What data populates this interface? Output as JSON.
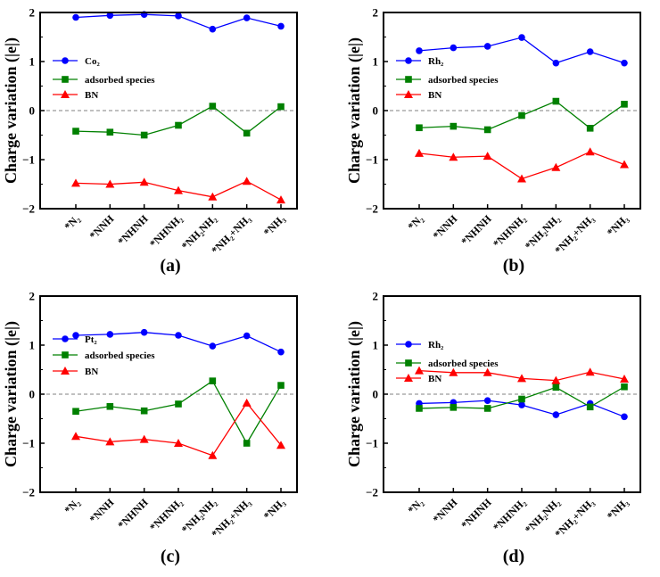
{
  "figure": {
    "colors": {
      "blue": "#0000ff",
      "green": "#008000",
      "red": "#ff0000",
      "axis": "#000000",
      "zero_line": "#808080"
    }
  },
  "chart_data": [
    {
      "type": "line",
      "panel_label": "(a)",
      "ylabel": "Charge variation (|e|)",
      "ylim": [
        -2,
        2
      ],
      "yticks": [
        "2",
        "1",
        "0",
        "−1",
        "−2"
      ],
      "categories": [
        "*N₂",
        "*NNH",
        "*NHNH",
        "*NHNH₂",
        "*NH₂NH₂",
        "*NH₂+NH₃",
        "*NH₃"
      ],
      "zero_line": true,
      "legend_position": "upper-left",
      "series": [
        {
          "name": "Co₂",
          "color": "#0000ff",
          "marker": "circle",
          "values": [
            1.9,
            1.94,
            1.96,
            1.93,
            1.66,
            1.89,
            1.72
          ]
        },
        {
          "name": "adsorbed species",
          "color": "#008000",
          "marker": "square",
          "values": [
            -0.42,
            -0.44,
            -0.5,
            -0.3,
            0.09,
            -0.46,
            0.08
          ]
        },
        {
          "name": "BN",
          "color": "#ff0000",
          "marker": "triangle",
          "values": [
            -1.48,
            -1.5,
            -1.46,
            -1.63,
            -1.76,
            -1.44,
            -1.82
          ]
        }
      ]
    },
    {
      "type": "line",
      "panel_label": "(b)",
      "ylabel": "Charge variation (|e|)",
      "ylim": [
        -2,
        2
      ],
      "yticks": [
        "2",
        "1",
        "0",
        "−1",
        "−2"
      ],
      "categories": [
        "*N₂",
        "*NNH",
        "*NHNH",
        "*NHNH₂",
        "*NH₂NH₂",
        "*NH₂+NH₃",
        "*NH₃"
      ],
      "zero_line": true,
      "legend_position": "upper-left",
      "series": [
        {
          "name": "Rh₂",
          "color": "#0000ff",
          "marker": "circle",
          "values": [
            1.22,
            1.28,
            1.31,
            1.49,
            0.97,
            1.2,
            0.97
          ]
        },
        {
          "name": "adsorbed species",
          "color": "#008000",
          "marker": "square",
          "values": [
            -0.35,
            -0.32,
            -0.39,
            -0.1,
            0.19,
            -0.36,
            0.13
          ]
        },
        {
          "name": "BN",
          "color": "#ff0000",
          "marker": "triangle",
          "values": [
            -0.87,
            -0.95,
            -0.93,
            -1.39,
            -1.16,
            -0.84,
            -1.1
          ]
        }
      ]
    },
    {
      "type": "line",
      "panel_label": "(c)",
      "ylabel": "Charge variation (|e|)",
      "ylim": [
        -2,
        2
      ],
      "yticks": [
        "2",
        "1",
        "0",
        "−1",
        "−2"
      ],
      "categories": [
        "*N₂",
        "*NNH",
        "*NHNH",
        "*NHNH₂",
        "*NH₂NH₂",
        "*NH₂+NH₃",
        "*NH₃"
      ],
      "zero_line": true,
      "legend_position": "middle-left",
      "series": [
        {
          "name": "Pt₂",
          "color": "#0000ff",
          "marker": "circle",
          "values": [
            1.2,
            1.22,
            1.26,
            1.2,
            0.98,
            1.19,
            0.86
          ]
        },
        {
          "name": "adsorbed species",
          "color": "#008000",
          "marker": "square",
          "values": [
            -0.35,
            -0.25,
            -0.34,
            -0.2,
            0.27,
            -1.0,
            0.18
          ]
        },
        {
          "name": "BN",
          "color": "#ff0000",
          "marker": "triangle",
          "values": [
            -0.86,
            -0.97,
            -0.92,
            -1.0,
            -1.25,
            -0.18,
            -1.04
          ]
        }
      ]
    },
    {
      "type": "line",
      "panel_label": "(d)",
      "ylabel": "Charge variation (|e|)",
      "ylim": [
        -2,
        2
      ],
      "yticks": [
        "2",
        "1",
        "0",
        "−1",
        "−2"
      ],
      "categories": [
        "*N₂",
        "*NNH",
        "*NHNH",
        "*NHNH₂",
        "*NH₂NH₂",
        "*NH₂+NH₃",
        "*NH₃"
      ],
      "zero_line": true,
      "legend_position": "upper-left",
      "series": [
        {
          "name": "Rh₂",
          "color": "#0000ff",
          "marker": "circle",
          "values": [
            -0.19,
            -0.17,
            -0.13,
            -0.22,
            -0.42,
            -0.19,
            -0.46
          ]
        },
        {
          "name": "adsorbed species",
          "color": "#008000",
          "marker": "square",
          "values": [
            -0.29,
            -0.27,
            -0.29,
            -0.1,
            0.14,
            -0.26,
            0.15
          ]
        },
        {
          "name": "BN",
          "color": "#ff0000",
          "marker": "triangle",
          "values": [
            0.48,
            0.44,
            0.44,
            0.32,
            0.28,
            0.45,
            0.31
          ]
        }
      ]
    }
  ]
}
